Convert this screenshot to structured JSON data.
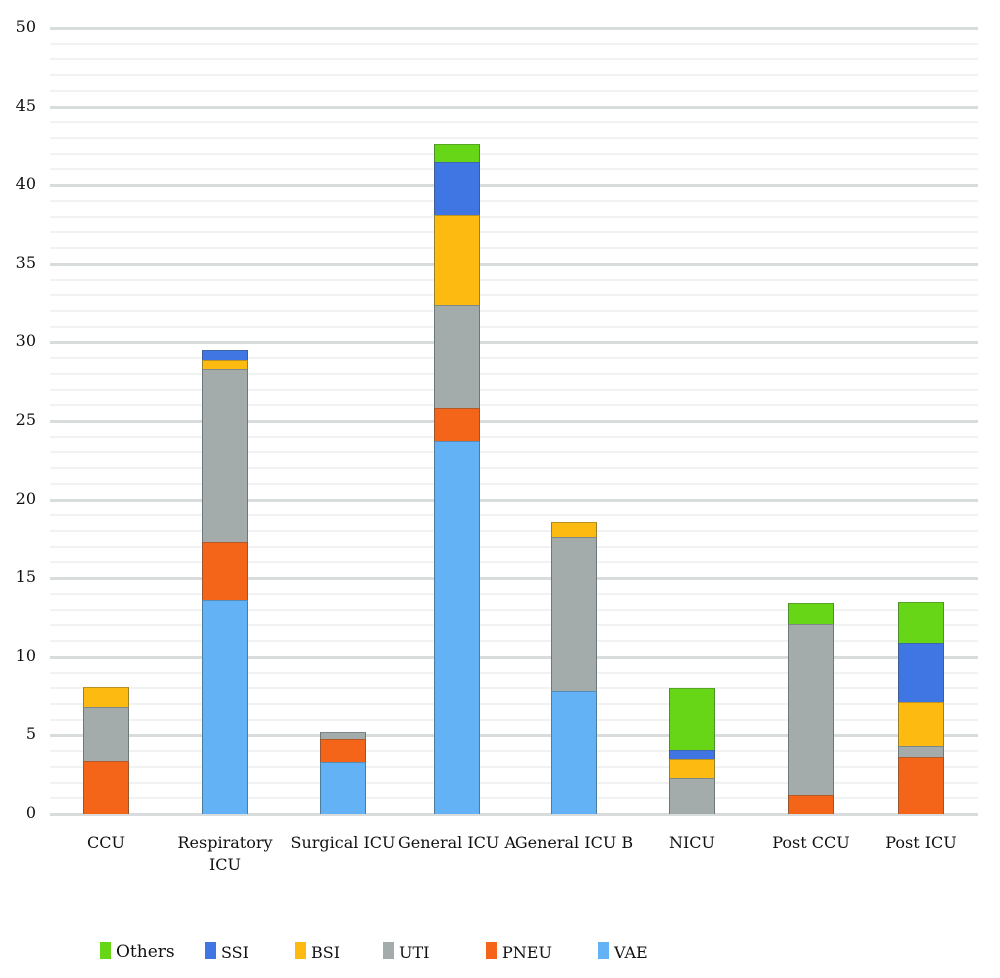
{
  "chart_data": {
    "type": "bar",
    "stacked": true,
    "title": "",
    "xlabel": "",
    "ylabel": "",
    "ylim": [
      0,
      50
    ],
    "yticks": [
      0,
      5,
      10,
      15,
      20,
      25,
      30,
      35,
      40,
      45,
      50
    ],
    "grid": {
      "major_every": 5,
      "minor_every": 1
    },
    "legend_position": "bottom",
    "categories": [
      "CCU",
      "Respiratory ICU",
      "Surgical ICU",
      "General ICU A",
      "General ICU B",
      "NICU",
      "Post CCU",
      "Post ICU"
    ],
    "series": [
      {
        "name": "VAE",
        "color": "#63b2f5",
        "values": [
          0,
          13.6,
          3.3,
          23.7,
          7.8,
          0,
          0,
          0
        ]
      },
      {
        "name": "PNEU",
        "color": "#f4651a",
        "values": [
          3.4,
          3.7,
          1.5,
          2.1,
          0,
          0,
          1.2,
          3.6
        ]
      },
      {
        "name": "UTI",
        "color": "#a3abab",
        "values": [
          3.4,
          11.0,
          0.4,
          6.6,
          9.8,
          2.3,
          10.9,
          0.7
        ]
      },
      {
        "name": "BSI",
        "color": "#fdbb11",
        "values": [
          1.3,
          0.6,
          0,
          5.7,
          1.0,
          1.2,
          0,
          2.8
        ]
      },
      {
        "name": "SSI",
        "color": "#3f76e4",
        "values": [
          0,
          0.6,
          0,
          3.4,
          0,
          0.6,
          0,
          3.8
        ]
      },
      {
        "name": "Others",
        "color": "#66d616",
        "values": [
          0,
          0,
          0,
          1.1,
          0,
          3.9,
          1.3,
          2.6
        ]
      }
    ],
    "totals": [
      8.1,
      29.5,
      5.2,
      42.6,
      18.6,
      8.0,
      13.4,
      13.5
    ]
  },
  "x_labels": [
    "CCU",
    "Respiratory\nICU",
    "Surgical ICU",
    "General ICU A",
    "General ICU B",
    "NICU",
    "Post CCU",
    "Post ICU"
  ],
  "legend": [
    {
      "label": "Others",
      "color": "#66d616"
    },
    {
      "label": "SSI",
      "color": "#3f76e4"
    },
    {
      "label": "BSI",
      "color": "#fdbb11"
    },
    {
      "label": "UTI",
      "color": "#a3abab"
    },
    {
      "label": "PNEU",
      "color": "#f4651a"
    },
    {
      "label": "VAE",
      "color": "#63b2f5"
    }
  ]
}
